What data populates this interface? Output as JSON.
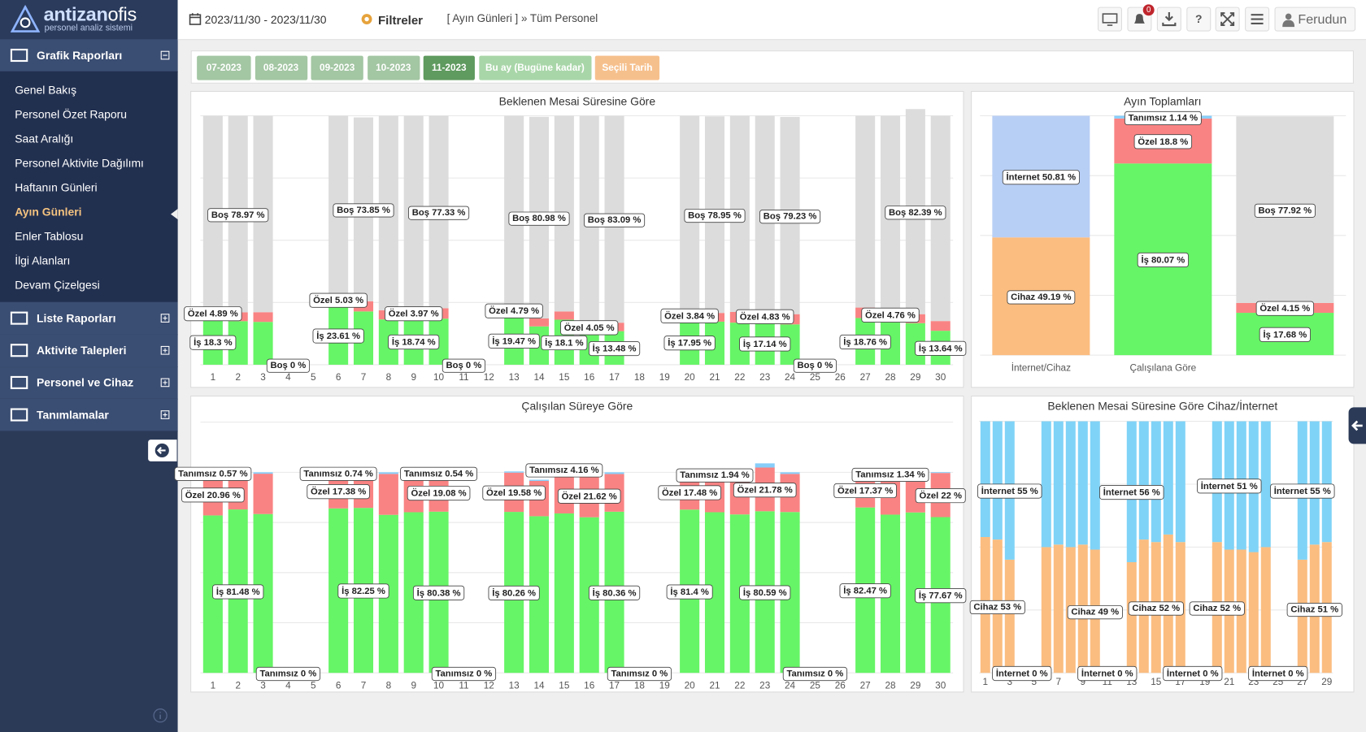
{
  "logo": {
    "brand_a": "antizan",
    "brand_b": "ofis",
    "tagline": "personel analiz sistemi"
  },
  "header": {
    "date_range": "2023/11/30 - 2023/11/30",
    "filters": "Filtreler",
    "breadcrumb": "[ Ayın Günleri ] » Tüm Personel",
    "notifications": 0,
    "help": "?",
    "user": "Ferudun"
  },
  "sidebar": {
    "sections": [
      {
        "title": "Grafik Raporları",
        "items": [
          "Genel Bakış",
          "Personel Özet Raporu",
          "Saat Aralığı",
          "Personel Aktivite Dağılımı",
          "Haftanın Günleri",
          "Ayın Günleri",
          "Enler Tablosu",
          "İlgi Alanları",
          "Devam Çizelgesi"
        ],
        "active_item": 5
      },
      {
        "title": "Liste Raporları"
      },
      {
        "title": "Aktivite Talepleri"
      },
      {
        "title": "Personel ve Cihaz"
      },
      {
        "title": "Tanımlamalar"
      }
    ]
  },
  "tabs": {
    "items": [
      "07-2023",
      "08-2023",
      "09-2023",
      "10-2023",
      "11-2023",
      "Bu ay (Bugüne kadar)",
      "Seçili Tarih"
    ],
    "active": 4
  },
  "charts": [
    {
      "type": "bar",
      "stacked": true,
      "title": "Beklenen Mesai Süresine Göre",
      "categories": [
        1,
        2,
        3,
        4,
        5,
        6,
        7,
        8,
        9,
        10,
        11,
        12,
        13,
        14,
        15,
        16,
        17,
        18,
        19,
        20,
        21,
        22,
        23,
        24,
        25,
        26,
        27,
        28,
        29,
        30
      ],
      "ylim": [
        0,
        100
      ],
      "yticks": [
        0,
        25,
        50,
        75,
        100
      ],
      "grid": true,
      "series": [
        {
          "name": "İş",
          "color": "#66f566",
          "values": [
            18.3,
            17.5,
            17.2,
            0,
            0,
            23.61,
            21.4,
            18.2,
            18.74,
            18.5,
            0,
            0,
            19.47,
            15.4,
            18.1,
            13.1,
            13.48,
            0,
            0,
            17.95,
            17.3,
            16.9,
            17.14,
            16.2,
            0,
            0,
            18.76,
            17.8,
            16.7,
            13.64
          ],
          "value_labels": [
            "İş 18.3 %",
            null,
            null,
            null,
            null,
            "İş 23.61 %",
            null,
            null,
            "İş 18.74 %",
            null,
            null,
            null,
            "İş 19.47 %",
            null,
            "İş 18.1 %",
            null,
            "İş 13.48 %",
            null,
            null,
            "İş 17.95 %",
            null,
            null,
            "İş 17.14 %",
            null,
            null,
            null,
            "İş 18.76 %",
            null,
            null,
            "İş 13.64 %"
          ]
        },
        {
          "name": "Özel",
          "color": "#f98383",
          "values": [
            4.89,
            3.53,
            3.9,
            0,
            0,
            5.03,
            4.1,
            3.7,
            3.97,
            4.2,
            0,
            0,
            4.79,
            3.2,
            3.3,
            4.05,
            3.4,
            0,
            0,
            3.84,
            3.5,
            4.3,
            4.83,
            4.1,
            0,
            0,
            4.2,
            4.76,
            3.6,
            3.9
          ],
          "value_labels": [
            "Özel 4.89 %",
            null,
            null,
            null,
            null,
            "Özel 5.03 %",
            null,
            null,
            "Özel 3.97 %",
            null,
            null,
            null,
            "Özel 4.79 %",
            null,
            null,
            "Özel 4.05 %",
            null,
            null,
            null,
            "Özel 3.84 %",
            null,
            null,
            "Özel 4.83 %",
            null,
            null,
            null,
            null,
            "Özel 4.76 %",
            null,
            null
          ]
        },
        {
          "name": "Boş",
          "color": "#dcdcdc",
          "values": [
            76.81,
            78.97,
            78.9,
            0,
            0,
            71.36,
            73.85,
            78.1,
            77.29,
            77.33,
            0,
            0,
            75.74,
            80.98,
            78.6,
            82.85,
            83.09,
            0,
            0,
            78.21,
            78.95,
            78.8,
            78.03,
            79.23,
            0,
            0,
            77.04,
            77.44,
            82.39,
            82.46
          ],
          "value_labels": [
            null,
            "Boş 78.97 %",
            null,
            "Boş 0 %",
            null,
            null,
            "Boş 73.85 %",
            null,
            null,
            "Boş 77.33 %",
            "Boş 0 %",
            null,
            null,
            "Boş 80.98 %",
            null,
            null,
            "Boş 83.09 %",
            null,
            null,
            null,
            "Boş 78.95 %",
            null,
            null,
            "Boş 79.23 %",
            "Boş 0 %",
            null,
            null,
            null,
            "Boş 82.39 %",
            null
          ]
        }
      ]
    },
    {
      "type": "bar",
      "stacked": true,
      "title": "Ayın Toplamları",
      "categories": [
        "İnternet/Cihaz",
        "Çalışılana Göre",
        null
      ],
      "ylim": [
        0,
        100
      ],
      "yticks": [
        0,
        25,
        50,
        75,
        100
      ],
      "grid": true,
      "series": [
        {
          "name": "Cihaz",
          "color": "#fbbd80",
          "values": [
            49.19,
            0,
            0
          ],
          "value_labels": [
            "Cihaz 49.19 %",
            null,
            null
          ]
        },
        {
          "name": "İnternet",
          "color": "#b8cff5",
          "values": [
            50.81,
            0,
            0
          ],
          "value_labels": [
            "İnternet 50.81 %",
            null,
            null
          ]
        },
        {
          "name": "İş",
          "color": "#66f566",
          "values": [
            0,
            80.07,
            17.68
          ],
          "value_labels": [
            null,
            "İş 80.07 %",
            "İş 17.68 %"
          ]
        },
        {
          "name": "Özel",
          "color": "#f98383",
          "values": [
            0,
            18.8,
            4.15
          ],
          "value_labels": [
            null,
            "Özel 18.8 %",
            "Özel 4.15 %"
          ]
        },
        {
          "name": "Tanımsız",
          "color": "#87cefa",
          "values": [
            0,
            1.14,
            0
          ],
          "value_labels": [
            null,
            "Tanımsız 1.14 %",
            null
          ]
        },
        {
          "name": "Boş",
          "color": "#dcdcdc",
          "values": [
            0,
            0,
            77.92
          ],
          "value_labels": [
            null,
            null,
            "Boş 77.92 %"
          ]
        }
      ]
    },
    {
      "type": "bar",
      "stacked": true,
      "title": "Çalışılan Süreye Göre",
      "categories": [
        1,
        2,
        3,
        4,
        5,
        6,
        7,
        8,
        9,
        10,
        11,
        12,
        13,
        14,
        15,
        16,
        17,
        18,
        19,
        20,
        21,
        22,
        23,
        24,
        25,
        26,
        27,
        28,
        29,
        30
      ],
      "ylim": [
        0,
        125
      ],
      "yticks": [
        0,
        25,
        50,
        75,
        100,
        125
      ],
      "grid": true,
      "series": [
        {
          "name": "İş",
          "color": "#66f566",
          "values": [
            78.5,
            81.48,
            79.2,
            0,
            0,
            82.0,
            82.25,
            78.8,
            80.1,
            80.38,
            0,
            0,
            80.26,
            78.1,
            79.5,
            77.6,
            80.36,
            0,
            0,
            81.4,
            80.1,
            79.0,
            80.59,
            80.2,
            0,
            0,
            82.47,
            78.9,
            80.0,
            77.67
          ],
          "value_labels": [
            null,
            "İş 81.48 %",
            null,
            null,
            null,
            null,
            "İş 82.25 %",
            null,
            null,
            "İş 80.38 %",
            null,
            null,
            "İş 80.26 %",
            null,
            null,
            null,
            "İş 80.36 %",
            null,
            null,
            "İş 81.4 %",
            null,
            null,
            "İş 80.59 %",
            null,
            null,
            null,
            "İş 82.47 %",
            null,
            null,
            "İş 77.67 %"
          ]
        },
        {
          "name": "Özel",
          "color": "#f98383",
          "values": [
            20.96,
            18.0,
            20.1,
            0,
            0,
            17.38,
            17.0,
            20.4,
            18.6,
            19.08,
            0,
            0,
            19.58,
            17.6,
            19.9,
            21.62,
            18.8,
            0,
            0,
            17.48,
            17.9,
            20.2,
            21.78,
            19.0,
            0,
            0,
            17.37,
            19.7,
            18.6,
            22
          ],
          "value_labels": [
            "Özel 20.96 %",
            null,
            null,
            null,
            null,
            "Özel 17.38 %",
            null,
            null,
            null,
            "Özel 19.08 %",
            null,
            null,
            "Özel 19.58 %",
            null,
            null,
            "Özel 21.62 %",
            null,
            null,
            null,
            "Özel 17.48 %",
            null,
            null,
            "Özel 21.78 %",
            null,
            null,
            null,
            "Özel 17.37 %",
            null,
            null,
            "Özel 22 %"
          ]
        },
        {
          "name": "Tanımsız",
          "color": "#87cefa",
          "values": [
            0.57,
            0.5,
            0.7,
            0,
            0,
            0.74,
            0.8,
            0.8,
            0.6,
            0.54,
            0,
            0,
            0.6,
            0.6,
            4.16,
            0.8,
            0.84,
            0,
            0,
            1.1,
            1.94,
            0.8,
            2.1,
            0.8,
            0,
            0,
            0.9,
            1.34,
            1.4,
            0.4
          ],
          "value_labels": [
            "Tanımsız 0.57 %",
            null,
            null,
            "Tanımsız 0 %",
            null,
            "Tanımsız 0.74 %",
            null,
            null,
            null,
            "Tanımsız 0.54 %",
            "Tanımsız 0 %",
            null,
            null,
            null,
            "Tanımsız 4.16 %",
            null,
            null,
            "Tanımsız 0 %",
            null,
            null,
            "Tanımsız 1.94 %",
            null,
            null,
            null,
            "Tanımsız 0 %",
            null,
            null,
            "Tanımsız 1.34 %",
            null,
            null
          ]
        }
      ]
    },
    {
      "type": "bar",
      "stacked": true,
      "title": "Beklenen Mesai Süresine Göre Cihaz/İnternet",
      "categories": [
        1,
        null,
        3,
        null,
        5,
        null,
        7,
        null,
        9,
        null,
        11,
        null,
        13,
        null,
        15,
        null,
        17,
        null,
        19,
        null,
        21,
        null,
        23,
        null,
        25,
        null,
        27,
        null,
        29
      ],
      "ylim": [
        0,
        100
      ],
      "yticks": [
        0,
        25,
        50,
        75,
        100
      ],
      "grid": true,
      "series": [
        {
          "name": "Cihaz",
          "color": "#fbbd80",
          "values": [
            54,
            53,
            45,
            0,
            0,
            50,
            51,
            50,
            51,
            49,
            0,
            0,
            44,
            53,
            52,
            55,
            52,
            0,
            0,
            52,
            49,
            49,
            48,
            50,
            0,
            0,
            45,
            51,
            52
          ],
          "value_labels": [
            null,
            "Cihaz 53 %",
            null,
            null,
            null,
            null,
            null,
            null,
            null,
            "Cihaz 49 %",
            null,
            null,
            null,
            null,
            "Cihaz 52 %",
            null,
            null,
            null,
            null,
            "Cihaz 52 %",
            null,
            null,
            null,
            null,
            null,
            null,
            null,
            "Cihaz 51 %",
            null
          ]
        },
        {
          "name": "İnternet",
          "color": "#7fd3f7",
          "values": [
            46,
            47,
            55,
            0,
            0,
            50,
            49,
            50,
            49,
            51,
            0,
            0,
            56,
            47,
            48,
            45,
            48,
            0,
            0,
            48,
            51,
            51,
            52,
            50,
            0,
            0,
            55,
            49,
            48
          ],
          "value_labels": [
            null,
            null,
            "İnternet 55 %",
            "İnternet 0 %",
            null,
            null,
            null,
            null,
            null,
            null,
            "İnternet 0 %",
            null,
            "İnternet 56 %",
            null,
            null,
            null,
            null,
            "İnternet 0 %",
            null,
            null,
            "İnternet 51 %",
            null,
            null,
            null,
            "İnternet 0 %",
            null,
            "İnternet 55 %",
            null,
            null
          ]
        }
      ]
    }
  ]
}
